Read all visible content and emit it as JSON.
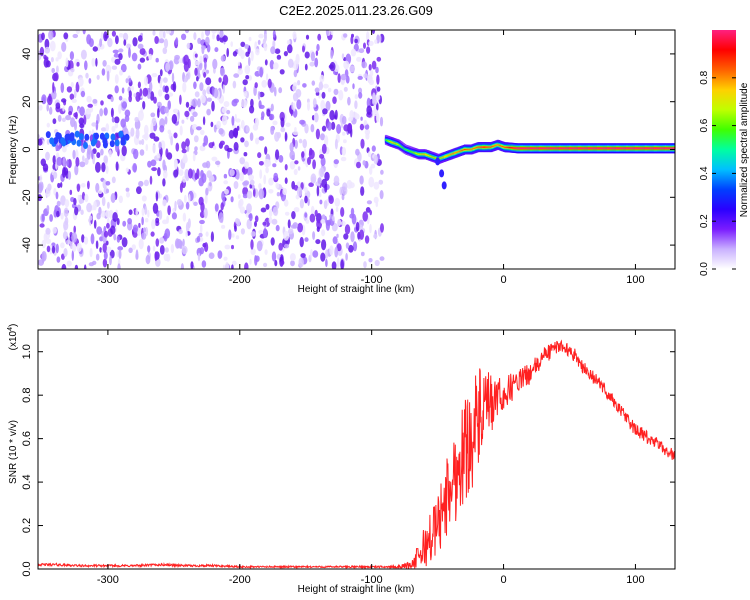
{
  "title": "C2E2.2025.011.23.26.G09",
  "chart_data": [
    {
      "type": "heatmap",
      "xlabel": "Height of straight line (km)",
      "ylabel": "Frequency (Hz)",
      "xlim": [
        -353,
        130
      ],
      "ylim": [
        -50,
        50
      ],
      "xticks": [
        -300,
        -200,
        -100,
        0,
        100
      ],
      "yticks": [
        -40,
        -20,
        0,
        20,
        40
      ],
      "colorbar": {
        "label": "Normalized spectral amplitude",
        "range": [
          0,
          1
        ],
        "ticks": [
          0.0,
          0.2,
          0.4,
          0.6,
          0.8
        ],
        "colors": [
          "#ffffff",
          "#c9b0ff",
          "#7a1cff",
          "#2a00ff",
          "#0040ff",
          "#00c0ff",
          "#00ffa0",
          "#40ff00",
          "#c0ff00",
          "#ffd000",
          "#ff6000",
          "#ff0000",
          "#ff2080"
        ]
      },
      "noise_region": {
        "x_from": -353,
        "x_to": -92,
        "freq_from": -50,
        "freq_to": 50
      },
      "signal_track": [
        {
          "x": -90,
          "freq": 4,
          "amp": 0.55
        },
        {
          "x": -85,
          "freq": 3,
          "amp": 0.75
        },
        {
          "x": -80,
          "freq": 2,
          "amp": 0.65
        },
        {
          "x": -75,
          "freq": 0,
          "amp": 0.55
        },
        {
          "x": -70,
          "freq": -1,
          "amp": 0.6
        },
        {
          "x": -65,
          "freq": -2,
          "amp": 0.7
        },
        {
          "x": -60,
          "freq": -2,
          "amp": 0.75
        },
        {
          "x": -55,
          "freq": -3,
          "amp": 0.7
        },
        {
          "x": -50,
          "freq": -4,
          "amp": 0.7
        },
        {
          "x": -45,
          "freq": -3,
          "amp": 0.75
        },
        {
          "x": -40,
          "freq": -2,
          "amp": 0.8
        },
        {
          "x": -35,
          "freq": -1,
          "amp": 0.8
        },
        {
          "x": -30,
          "freq": 0,
          "amp": 0.85
        },
        {
          "x": -25,
          "freq": 0,
          "amp": 0.8
        },
        {
          "x": -20,
          "freq": 1,
          "amp": 0.85
        },
        {
          "x": -15,
          "freq": 1,
          "amp": 0.9
        },
        {
          "x": -10,
          "freq": 1,
          "amp": 0.85
        },
        {
          "x": -5,
          "freq": 2,
          "amp": 0.8
        },
        {
          "x": 0,
          "freq": 1,
          "amp": 0.85
        },
        {
          "x": 10,
          "freq": 0.5,
          "amp": 1.0
        },
        {
          "x": 40,
          "freq": 0.5,
          "amp": 1.0
        },
        {
          "x": 70,
          "freq": 0.5,
          "amp": 1.0
        },
        {
          "x": 100,
          "freq": 0.5,
          "amp": 1.0
        },
        {
          "x": 130,
          "freq": 0.5,
          "amp": 1.0
        }
      ],
      "signal_spur": [
        {
          "x": -50,
          "freq": -5
        },
        {
          "x": -47,
          "freq": -10
        },
        {
          "x": -45,
          "freq": -15
        }
      ]
    },
    {
      "type": "line",
      "xlabel": "Height of straight line (km)",
      "ylabel": "SNR (10 * v/v)",
      "y_multiplier": "(x10",
      "y_multiplier_exp": "4",
      "y_multiplier_close": ")",
      "xlim": [
        -353,
        130
      ],
      "ylim": [
        0,
        1.1
      ],
      "xticks": [
        -300,
        -200,
        -100,
        0,
        100
      ],
      "yticks": [
        0.0,
        0.2,
        0.4,
        0.6,
        0.8,
        1.0
      ],
      "series": [
        {
          "color": "#ff2020",
          "x": [
            -353,
            -340,
            -320,
            -300,
            -280,
            -260,
            -240,
            -220,
            -200,
            -180,
            -160,
            -140,
            -120,
            -100,
            -90,
            -80,
            -70,
            -65,
            -60,
            -55,
            -50,
            -45,
            -40,
            -35,
            -30,
            -25,
            -20,
            -15,
            -10,
            -5,
            0,
            5,
            10,
            15,
            20,
            25,
            30,
            35,
            40,
            45,
            50,
            55,
            60,
            65,
            70,
            75,
            80,
            85,
            90,
            95,
            100,
            105,
            110,
            115,
            120,
            125,
            130
          ],
          "y": [
            0.02,
            0.02,
            0.015,
            0.015,
            0.015,
            0.02,
            0.015,
            0.015,
            0.01,
            0.01,
            0.01,
            0.01,
            0.01,
            0.01,
            0.01,
            0.01,
            0.02,
            0.05,
            0.1,
            0.15,
            0.2,
            0.3,
            0.38,
            0.45,
            0.55,
            0.6,
            0.68,
            0.72,
            0.75,
            0.78,
            0.8,
            0.83,
            0.86,
            0.88,
            0.9,
            0.93,
            0.98,
            1.0,
            1.02,
            1.03,
            1.0,
            0.98,
            0.93,
            0.9,
            0.87,
            0.84,
            0.8,
            0.76,
            0.72,
            0.68,
            0.64,
            0.62,
            0.6,
            0.58,
            0.56,
            0.54,
            0.52
          ],
          "noise_amplitude": [
            0.005,
            0.006,
            0.005,
            0.005,
            0.005,
            0.006,
            0.005,
            0.005,
            0.004,
            0.004,
            0.004,
            0.004,
            0.004,
            0.004,
            0.004,
            0.005,
            0.02,
            0.06,
            0.1,
            0.12,
            0.15,
            0.18,
            0.2,
            0.22,
            0.25,
            0.25,
            0.25,
            0.2,
            0.15,
            0.1,
            0.08,
            0.07,
            0.06,
            0.05,
            0.05,
            0.05,
            0.04,
            0.04,
            0.03,
            0.03,
            0.03,
            0.03,
            0.03,
            0.03,
            0.03,
            0.03,
            0.03,
            0.03,
            0.03,
            0.03,
            0.03,
            0.03,
            0.03,
            0.03,
            0.03,
            0.03,
            0.03
          ]
        }
      ]
    }
  ]
}
